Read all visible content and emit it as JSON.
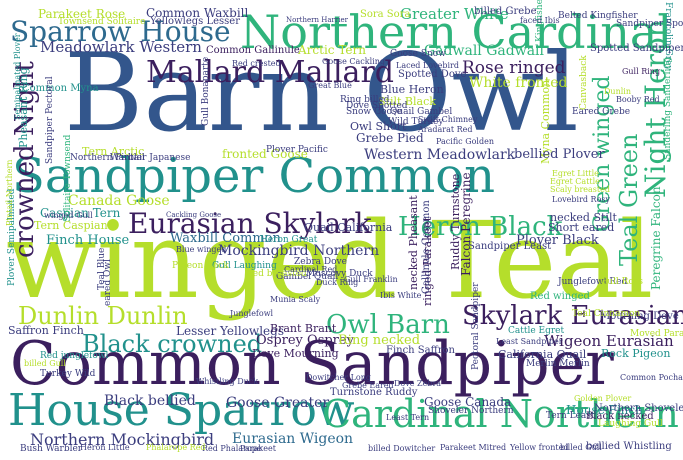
{
  "palette": {
    "dark_purple": "#3b1f5e",
    "indigo": "#3b3d7e",
    "slate_blue": "#33568c",
    "steel_blue": "#2e6a8e",
    "teal": "#21918c",
    "green": "#2fb47c",
    "light_green": "#5ec962",
    "lime": "#b5de2b",
    "yellow_green": "#d8e219"
  },
  "words": [
    {
      "text": "winged Teal",
      "color": "#b5de2b"
    },
    {
      "text": "Barn Owl",
      "color": "#33568c"
    },
    {
      "text": "Common Sandpiper",
      "color": "#3b1f5e"
    },
    {
      "text": "Sandpiper Common",
      "color": "#21918c"
    },
    {
      "text": "Northern Cardinal",
      "color": "#2fb47c"
    },
    {
      "text": "House Sparrow",
      "color": "#21918c"
    },
    {
      "text": "Cardinal Northern",
      "color": "#2fb47c"
    },
    {
      "text": "Sparrow House",
      "color": "#2e6a8e"
    },
    {
      "text": "Mallard Mallard",
      "color": "#3b1f5e"
    },
    {
      "text": "Eurasian Skylark",
      "color": "#3b1f5e"
    },
    {
      "text": "Skylark Eurasian",
      "color": "#3b1f5e"
    },
    {
      "text": "Heron Black",
      "color": "#2fb47c"
    },
    {
      "text": "Owl Barn",
      "color": "#2fb47c"
    },
    {
      "text": "Dunlin Dunlin",
      "color": "#b5de2b"
    },
    {
      "text": "Black crowned",
      "color": "#21918c"
    },
    {
      "text": "crowned Night",
      "color": "#3b1f5e"
    },
    {
      "text": "Night Heron",
      "color": "#2fb47c"
    },
    {
      "text": "Teal Green",
      "color": "#2fb47c"
    },
    {
      "text": "Green winged",
      "color": "#2fb47c"
    },
    {
      "text": "Rose ringed",
      "color": "#3b1f5e"
    },
    {
      "text": "White fronted",
      "color": "#b5de2b"
    },
    {
      "text": "Myna Common",
      "color": "#b5de2b"
    },
    {
      "text": "Meadowlark Western",
      "color": "#3b3d7e"
    },
    {
      "text": "Western Meadowlark",
      "color": "#3b3d7e"
    },
    {
      "text": "Mockingbird Northern",
      "color": "#3b3d7e"
    },
    {
      "text": "Northern Mockingbird",
      "color": "#3b3d7e"
    },
    {
      "text": "Eurasian Wigeon",
      "color": "#2e6a8e"
    },
    {
      "text": "Wigeon Eurasian",
      "color": "#3b1f5e"
    },
    {
      "text": "Goose Greater",
      "color": "#3b3d7e"
    },
    {
      "text": "Goose Canada",
      "color": "#3b3d7e"
    },
    {
      "text": "Canada Goose",
      "color": "#b5de2b"
    },
    {
      "text": "Greater White",
      "color": "#2fb47c"
    },
    {
      "text": "Common Waxbill",
      "color": "#3b3d7e"
    },
    {
      "text": "Waxbill Common",
      "color": "#2e6a8e"
    },
    {
      "text": "Parakeet Rose",
      "color": "#b5de2b"
    },
    {
      "text": "Yellowlegs Lesser",
      "color": "#3b3d7e"
    },
    {
      "text": "Lesser Yellowlegs",
      "color": "#3b3d7e"
    },
    {
      "text": "Gadwall Gadwall",
      "color": "#2fb47c"
    },
    {
      "text": "Black bellied",
      "color": "#3b3d7e"
    },
    {
      "text": "bellied Plover",
      "color": "#3b3d7e"
    },
    {
      "text": "Plover Black",
      "color": "#3b3d7e"
    },
    {
      "text": "Osprey Osprey",
      "color": "#3b1f5e"
    },
    {
      "text": "Ring necked",
      "color": "#b5de2b"
    },
    {
      "text": "Finch House",
      "color": "#21918c"
    },
    {
      "text": "House Finch",
      "color": "#21918c"
    },
    {
      "text": "Caspian Tern",
      "color": "#21918c"
    },
    {
      "text": "Tern Caspian",
      "color": "#b5de2b"
    },
    {
      "text": "Saffron Finch",
      "color": "#3b3d7e"
    },
    {
      "text": "Finch Saffron",
      "color": "#3b3d7e"
    },
    {
      "text": "Brant Brant",
      "color": "#3b1f5e"
    },
    {
      "text": "Dove Mourning",
      "color": "#3b1f5e"
    },
    {
      "text": "Mourning Dove",
      "color": "#3b3d7e"
    },
    {
      "text": "Grebe Pied",
      "color": "#3b3d7e"
    },
    {
      "text": "Owl Short",
      "color": "#3b3d7e"
    },
    {
      "text": "Stilt Black",
      "color": "#b5de2b"
    },
    {
      "text": "Blue Heron",
      "color": "#3b3d7e"
    },
    {
      "text": "Spotted Dove",
      "color": "#3b3d7e"
    },
    {
      "text": "Arctic Tern",
      "color": "#b5de2b"
    },
    {
      "text": "Tern Arctic",
      "color": "#b5de2b"
    },
    {
      "text": "fronted Goose",
      "color": "#b5de2b"
    },
    {
      "text": "Common Gallinule",
      "color": "#3b1f5e"
    },
    {
      "text": "Pheasant Ring",
      "color": "#21918c"
    },
    {
      "text": "Common Myna",
      "color": "#21918c"
    },
    {
      "text": "Northern Pintail",
      "color": "#3b3d7e"
    },
    {
      "text": "Warbler Japanese",
      "color": "#3b3d7e"
    },
    {
      "text": "Heron Great",
      "color": "#21918c"
    },
    {
      "text": "Quail California",
      "color": "#3b3d7e"
    },
    {
      "text": "California Quail",
      "color": "#3b3d7e"
    },
    {
      "text": "Rock Pigeon",
      "color": "#21918c"
    },
    {
      "text": "Falcon Peregrine",
      "color": "#3b1f5e"
    },
    {
      "text": "Peregrine Falcon",
      "color": "#2fb47c"
    },
    {
      "text": "Short eared",
      "color": "#3b3d7e"
    },
    {
      "text": "necked Stilt",
      "color": "#3b3d7e"
    },
    {
      "text": "Sandpiper Least",
      "color": "#3b3d7e"
    },
    {
      "text": "Cattle Egret",
      "color": "#21918c"
    },
    {
      "text": "Tern Least",
      "color": "#3b3d7e"
    },
    {
      "text": "Turnstone Ruddy",
      "color": "#3b3d7e"
    },
    {
      "text": "Ruddy Turnstone",
      "color": "#3b1f5e"
    },
    {
      "text": "Spotted Sandpiper",
      "color": "#3b3d7e"
    },
    {
      "text": "Kingfisher Belted",
      "color": "#2fb47c"
    },
    {
      "text": "Belted Kingfisher",
      "color": "#3b3d7e"
    },
    {
      "text": "Red winged",
      "color": "#2fb47c"
    },
    {
      "text": "Black necked",
      "color": "#3b1f5e"
    },
    {
      "text": "billed Grebe",
      "color": "#3b3d7e"
    },
    {
      "text": "bellied Whistling",
      "color": "#3b3d7e"
    },
    {
      "text": "Bush Warbler",
      "color": "#3b3d7e"
    },
    {
      "text": "Shoveler Northern",
      "color": "#3b3d7e"
    },
    {
      "text": "Northern Shoveler",
      "color": "#3b3d7e"
    },
    {
      "text": "Gull Laughing",
      "color": "#21918c"
    },
    {
      "text": "Gambel Quail",
      "color": "#3b3d7e"
    },
    {
      "text": "Eared Grebe",
      "color": "#3b3d7e"
    },
    {
      "text": "Snow Goose",
      "color": "#3b3d7e"
    },
    {
      "text": "Goose Snow",
      "color": "#3b3d7e"
    },
    {
      "text": "Sora Sora",
      "color": "#b5de2b"
    },
    {
      "text": "Townsend Solitaire",
      "color": "#b5de2b"
    },
    {
      "text": "Ring billed",
      "color": "#3b3d7e"
    },
    {
      "text": "Dove Spotted",
      "color": "#3b3d7e"
    },
    {
      "text": "Quail Gambel",
      "color": "#3b3d7e"
    },
    {
      "text": "Wild Turkey",
      "color": "#3b3d7e"
    },
    {
      "text": "Plover Pacific",
      "color": "#3b3d7e"
    },
    {
      "text": "fronted Goose",
      "color": "#b5de2b"
    },
    {
      "text": "Red breasted",
      "color": "#b5de2b"
    },
    {
      "text": "Muscovy Duck",
      "color": "#3b3d7e"
    },
    {
      "text": "Zebra Dove",
      "color": "#3b3d7e"
    },
    {
      "text": "Cardinal Red",
      "color": "#3b3d7e"
    },
    {
      "text": "Duck Ring",
      "color": "#3b3d7e"
    },
    {
      "text": "Munia Scaly",
      "color": "#3b3d7e"
    },
    {
      "text": "Junglefowl Red",
      "color": "#3b3d7e"
    },
    {
      "text": "Gull Ross",
      "color": "#b5de2b"
    },
    {
      "text": "Red junglefowl",
      "color": "#21918c"
    },
    {
      "text": "Turkey Wild",
      "color": "#3b3d7e"
    },
    {
      "text": "Solitaire Townsend",
      "color": "#2fb47c"
    },
    {
      "text": "Sandpiper Pectoral",
      "color": "#3b3d7e"
    },
    {
      "text": "Pectoral Sandpiper",
      "color": "#3b3d7e"
    },
    {
      "text": "Gull Bonaparte",
      "color": "#3b3d7e"
    },
    {
      "text": "ringed Parakeet",
      "color": "#3b1f5e"
    },
    {
      "text": "necked Pheasant",
      "color": "#3b1f5e"
    },
    {
      "text": "Gallinule Common",
      "color": "#3b3d7e"
    },
    {
      "text": "Teal Blue",
      "color": "#3b3d7e"
    },
    {
      "text": "Teal Cinnamon",
      "color": "#b5de2b"
    },
    {
      "text": "Canvasback",
      "color": "#b5de2b"
    },
    {
      "text": "eared Owl",
      "color": "#3b3d7e"
    },
    {
      "text": "Pigeon Rock",
      "color": "#b5de2b"
    },
    {
      "text": "Cackling Goose",
      "color": "#3b3d7e"
    },
    {
      "text": "Blue winged",
      "color": "#3b3d7e"
    },
    {
      "text": "Moved Parakeet",
      "color": "#b5de2b"
    },
    {
      "text": "Merlin Merlin",
      "color": "#3b3d7e"
    },
    {
      "text": "Least Sandpiper",
      "color": "#3b3d7e"
    },
    {
      "text": "Golden Plover",
      "color": "#b5de2b"
    },
    {
      "text": "Laughing Gull",
      "color": "#b5de2b"
    },
    {
      "text": "Dove Zebra",
      "color": "#3b3d7e"
    },
    {
      "text": "Red Phalarope",
      "color": "#3b3d7e"
    },
    {
      "text": "Parakeet Mitred",
      "color": "#3b3d7e"
    },
    {
      "text": "Yellow fronted",
      "color": "#3b3d7e"
    },
    {
      "text": "billed Gull",
      "color": "#3b3d7e"
    },
    {
      "text": "Indian Plover",
      "color": "#3b3d7e"
    },
    {
      "text": "Least Tern",
      "color": "#3b3d7e"
    },
    {
      "text": "Red crested",
      "color": "#3b3d7e"
    },
    {
      "text": "Goose Cackling",
      "color": "#3b3d7e"
    },
    {
      "text": "Laced Lovebird",
      "color": "#3b3d7e"
    },
    {
      "text": "Great Blue",
      "color": "#3b3d7e"
    },
    {
      "text": "Aradarat Red",
      "color": "#3b3d7e"
    },
    {
      "text": "Swift Chimney",
      "color": "#3b3d7e"
    },
    {
      "text": "Pacific Golden",
      "color": "#3b3d7e"
    },
    {
      "text": "Egret Cattle",
      "color": "#b5de2b"
    },
    {
      "text": "Scaly breasted",
      "color": "#b5de2b"
    },
    {
      "text": "Gull Ring",
      "color": "#3b1f5e"
    },
    {
      "text": "Booby Red",
      "color": "#3b3d7e"
    },
    {
      "text": "Northern Harrier",
      "color": "#3b3d7e"
    },
    {
      "text": "Lovebird Rosy",
      "color": "#3b3d7e"
    },
    {
      "text": "faced Ibis",
      "color": "#3b3d7e"
    },
    {
      "text": "Francolin Grey",
      "color": "#21918c"
    },
    {
      "text": "Sanderling Sanderling",
      "color": "#2fb47c"
    },
    {
      "text": "Sandpiper Spotted",
      "color": "#3b3d7e"
    },
    {
      "text": "Egret Little",
      "color": "#b5de2b"
    },
    {
      "text": "Dunlin",
      "color": "#b5de2b"
    },
    {
      "text": "Plover Semipalmated",
      "color": "#21918c"
    },
    {
      "text": "Semipalmated Plover",
      "color": "#21918c"
    },
    {
      "text": "Pintail Northern",
      "color": "#b5de2b"
    },
    {
      "text": "winged Gull",
      "color": "#3b3d7e"
    },
    {
      "text": "Phalarope Red",
      "color": "#b5de2b"
    },
    {
      "text": "Parakeet",
      "color": "#3b3d7e"
    },
    {
      "text": "Whistling Duck",
      "color": "#3b3d7e"
    },
    {
      "text": "billed Gull",
      "color": "#b5de2b"
    },
    {
      "text": "billed Dowitcher",
      "color": "#3b3d7e"
    },
    {
      "text": "Common Pochard",
      "color": "#3b3d7e"
    },
    {
      "text": "Heron Little",
      "color": "#3b3d7e"
    },
    {
      "text": "Junglefowl",
      "color": "#3b3d7e"
    },
    {
      "text": "Grebe Eared",
      "color": "#3b3d7e"
    },
    {
      "text": "Dowitcher Long",
      "color": "#3b3d7e"
    },
    {
      "text": "Gull Franklin",
      "color": "#3b3d7e"
    },
    {
      "text": "Ibis White",
      "color": "#3b3d7e"
    },
    {
      "text": "White faced",
      "color": "#3b3d7e"
    }
  ]
}
